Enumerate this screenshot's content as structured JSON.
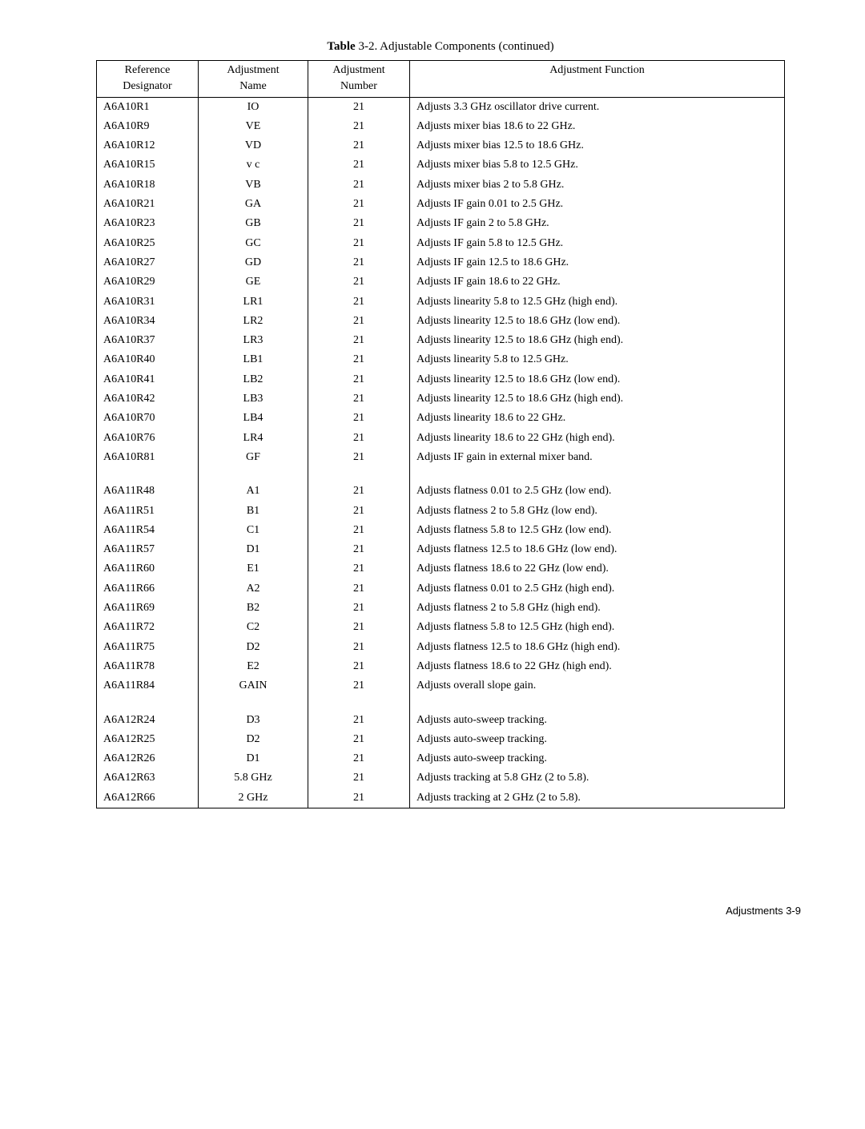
{
  "caption_bold": "Table",
  "caption_rest": " 3-2. Adjustable Components (continued)",
  "headers": {
    "c1a": "Reference",
    "c1b": "Designator",
    "c2a": "Adjustment",
    "c2b": "Name",
    "c3a": "Adjustment",
    "c3b": "Number",
    "c4": "Adjustment  Function"
  },
  "rows": [
    {
      "d": "A6A10R1",
      "n": "IO",
      "num": "21",
      "f": "Adjusts 3.3 GHz oscillator drive current."
    },
    {
      "d": "A6A10R9",
      "n": "VE",
      "num": "21",
      "f": "Adjusts mixer bias 18.6 to 22 GHz."
    },
    {
      "d": "A6A10R12",
      "n": "VD",
      "num": "21",
      "f": "Adjusts mixer bias 12.5 to 18.6 GHz."
    },
    {
      "d": "A6A10R15",
      "n": "v c",
      "num": "21",
      "f": "Adjusts mixer bias 5.8 to 12.5 GHz."
    },
    {
      "d": "A6A10R18",
      "n": "VB",
      "num": "21",
      "f": "Adjusts mixer bias 2 to 5.8 GHz."
    },
    {
      "d": "A6A10R21",
      "n": "GA",
      "num": "21",
      "f": "Adjusts IF gain 0.01 to 2.5 GHz."
    },
    {
      "d": "A6A10R23",
      "n": "GB",
      "num": "21",
      "f": "Adjusts IF gain 2 to 5.8 GHz."
    },
    {
      "d": "A6A10R25",
      "n": "GC",
      "num": "21",
      "f": "Adjusts IF gain 5.8 to 12.5 GHz."
    },
    {
      "d": "A6A10R27",
      "n": "GD",
      "num": "21",
      "f": "Adjusts IF gain 12.5 to 18.6 GHz."
    },
    {
      "d": "A6A10R29",
      "n": "GE",
      "num": "21",
      "f": "Adjusts IF gain 18.6 to 22 GHz."
    },
    {
      "d": "A6A10R31",
      "n": "LR1",
      "num": "21",
      "f": "Adjusts linearity 5.8 to 12.5 GHz (high end)."
    },
    {
      "d": "A6A10R34",
      "n": "LR2",
      "num": "21",
      "f": "Adjusts linearity 12.5 to 18.6 GHz (low end)."
    },
    {
      "d": "A6A10R37",
      "n": "LR3",
      "num": "21",
      "f": "Adjusts linearity 12.5 to 18.6 GHz (high end)."
    },
    {
      "d": "A6A10R40",
      "n": "LB1",
      "num": "21",
      "f": "Adjusts linearity 5.8 to 12.5 GHz."
    },
    {
      "d": "A6A10R41",
      "n": "LB2",
      "num": "21",
      "f": "Adjusts linearity 12.5 to 18.6 GHz (low end)."
    },
    {
      "d": "A6A10R42",
      "n": "LB3",
      "num": "21",
      "f": "Adjusts linearity 12.5 to 18.6 GHz (high end)."
    },
    {
      "d": "A6A10R70",
      "n": "LB4",
      "num": "21",
      "f": "Adjusts linearity 18.6 to 22 GHz."
    },
    {
      "d": "A6A10R76",
      "n": "LR4",
      "num": "21",
      "f": "Adjusts linearity 18.6 to 22 GHz (high end)."
    },
    {
      "d": "A6A10R81",
      "n": "GF",
      "num": "21",
      "f": "Adjusts IF gain in external mixer band."
    },
    {
      "spacer": true
    },
    {
      "d": "A6A11R48",
      "n": "A1",
      "num": "21",
      "f": "Adjusts flatness 0.01 to 2.5 GHz (low end)."
    },
    {
      "d": "A6A11R51",
      "n": "B1",
      "num": "21",
      "f": "Adjusts flatness 2 to 5.8 GHz (low end)."
    },
    {
      "d": "A6A11R54",
      "n": "C1",
      "num": "21",
      "f": "Adjusts flatness 5.8 to 12.5 GHz (low end)."
    },
    {
      "d": "A6A11R57",
      "n": "D1",
      "num": "21",
      "f": "Adjusts flatness 12.5 to 18.6 GHz (low end)."
    },
    {
      "d": "A6A11R60",
      "n": "E1",
      "num": "21",
      "f": "Adjusts flatness 18.6 to 22 GHz (low end)."
    },
    {
      "d": "A6A11R66",
      "n": "A2",
      "num": "21",
      "f": "Adjusts flatness 0.01 to 2.5 GHz (high end)."
    },
    {
      "d": "A6A11R69",
      "n": "B2",
      "num": "21",
      "f": "Adjusts flatness 2 to 5.8 GHz (high end)."
    },
    {
      "d": "A6A11R72",
      "n": "C2",
      "num": "21",
      "f": "Adjusts flatness 5.8 to 12.5 GHz (high end)."
    },
    {
      "d": "A6A11R75",
      "n": "D2",
      "num": "21",
      "f": "Adjusts flatness 12.5 to 18.6 GHz (high end)."
    },
    {
      "d": "A6A11R78",
      "n": "E2",
      "num": "21",
      "f": "Adjusts flatness 18.6 to 22 GHz (high end)."
    },
    {
      "d": "A6A11R84",
      "n": "GAIN",
      "num": "21",
      "f": "Adjusts overall slope gain."
    },
    {
      "spacer": true
    },
    {
      "d": "A6A12R24",
      "n": "D3",
      "num": "21",
      "f": "Adjusts auto-sweep tracking."
    },
    {
      "d": "A6A12R25",
      "n": "D2",
      "num": "21",
      "f": "Adjusts auto-sweep tracking."
    },
    {
      "d": "A6A12R26",
      "n": "D1",
      "num": "21",
      "f": "Adjusts auto-sweep tracking."
    },
    {
      "d": "A6A12R63",
      "n": "5.8 GHz",
      "num": "21",
      "f": "Adjusts tracking at 5.8 GHz (2 to 5.8)."
    },
    {
      "d": "A6A12R66",
      "n": "2 GHz",
      "num": "21",
      "f": "Adjusts tracking at 2 GHz (2 to 5.8)."
    }
  ],
  "footer": "Adjustments 3-9"
}
